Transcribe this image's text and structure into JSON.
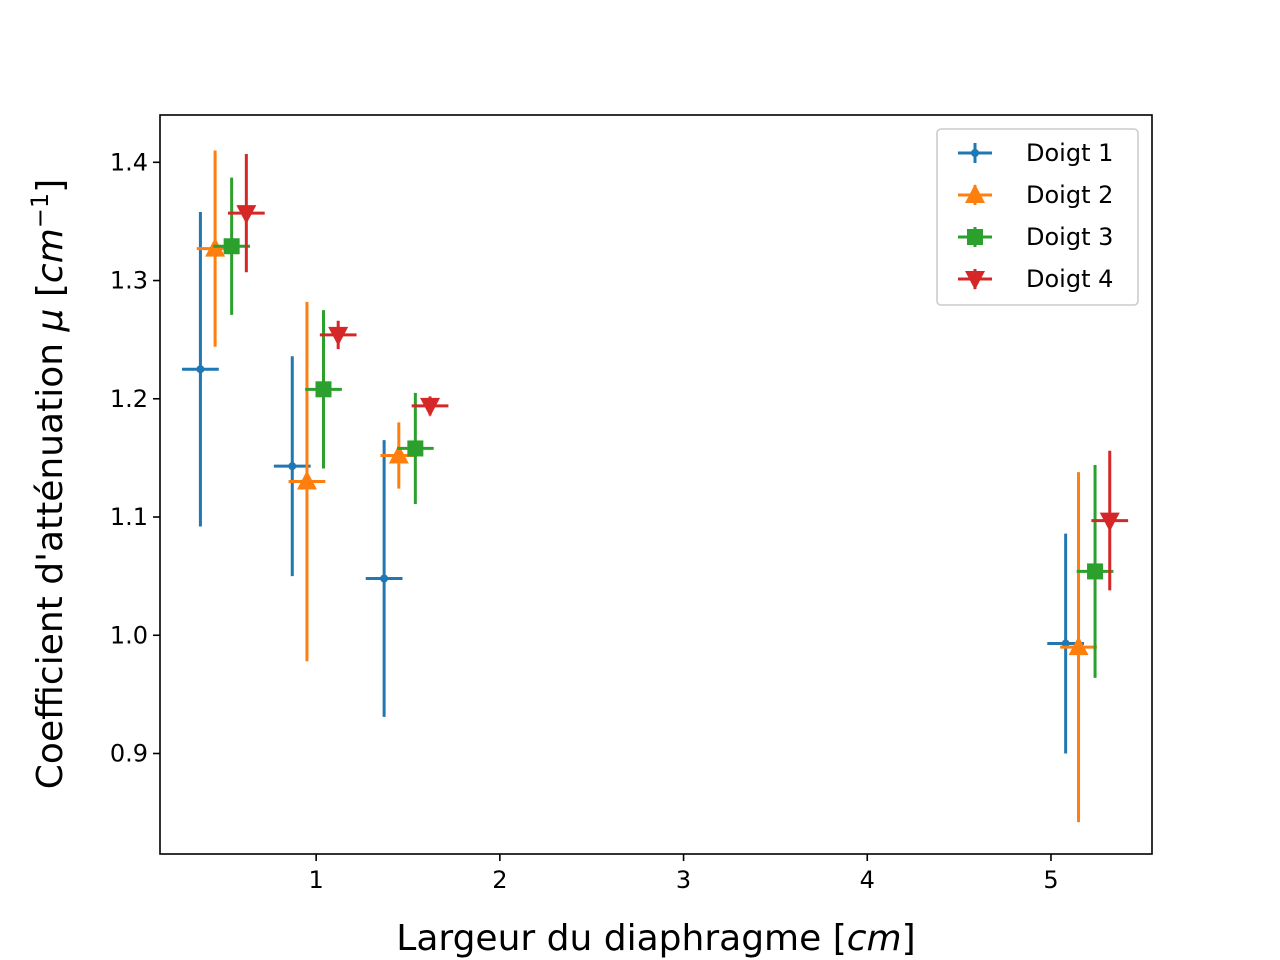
{
  "chart_data": {
    "type": "scatter",
    "xlabel_text": "Largeur du diaphragme [",
    "xlabel_unit": "cm",
    "xlabel_close": "]",
    "ylabel_text": "Coefficient d'atténuation ",
    "ylabel_symbol": "μ",
    "ylabel_open": " [",
    "ylabel_unit": "cm",
    "ylabel_exp": "−1",
    "ylabel_close": "]",
    "xlim": [
      0.15,
      5.55
    ],
    "ylim": [
      0.815,
      1.44
    ],
    "xticks": [
      {
        "value": 1,
        "label": "1"
      },
      {
        "value": 2,
        "label": "2"
      },
      {
        "value": 3,
        "label": "3"
      },
      {
        "value": 4,
        "label": "4"
      },
      {
        "value": 5,
        "label": "5"
      }
    ],
    "yticks": [
      {
        "value": 0.9,
        "label": "0.9"
      },
      {
        "value": 1.0,
        "label": "1.0"
      },
      {
        "value": 1.1,
        "label": "1.1"
      },
      {
        "value": 1.2,
        "label": "1.2"
      },
      {
        "value": 1.3,
        "label": "1.3"
      },
      {
        "value": 1.4,
        "label": "1.4"
      }
    ],
    "grid": false,
    "legend_position": "top-right",
    "series": [
      {
        "name": "Doigt 1",
        "color": "#1f77b4",
        "marker": "point",
        "points": [
          {
            "x": 0.37,
            "y": 1.225,
            "xerr": 0.1,
            "yerr": 0.133
          },
          {
            "x": 0.87,
            "y": 1.143,
            "xerr": 0.1,
            "yerr": 0.093
          },
          {
            "x": 1.37,
            "y": 1.048,
            "xerr": 0.1,
            "yerr": 0.117
          },
          {
            "x": 5.08,
            "y": 0.993,
            "xerr": 0.1,
            "yerr": 0.093
          }
        ]
      },
      {
        "name": "Doigt 2",
        "color": "#ff7f0e",
        "marker": "triangle-up",
        "points": [
          {
            "x": 0.45,
            "y": 1.327,
            "xerr": 0.1,
            "yerr": 0.083
          },
          {
            "x": 0.95,
            "y": 1.13,
            "xerr": 0.1,
            "yerr": 0.152
          },
          {
            "x": 1.45,
            "y": 1.152,
            "xerr": 0.1,
            "yerr": 0.028
          },
          {
            "x": 5.15,
            "y": 0.99,
            "xerr": 0.1,
            "yerr": 0.148
          }
        ]
      },
      {
        "name": "Doigt 3",
        "color": "#2ca02c",
        "marker": "square",
        "points": [
          {
            "x": 0.54,
            "y": 1.329,
            "xerr": 0.1,
            "yerr": 0.058
          },
          {
            "x": 1.04,
            "y": 1.208,
            "xerr": 0.1,
            "yerr": 0.067
          },
          {
            "x": 1.54,
            "y": 1.158,
            "xerr": 0.1,
            "yerr": 0.047
          },
          {
            "x": 5.24,
            "y": 1.054,
            "xerr": 0.1,
            "yerr": 0.09
          }
        ]
      },
      {
        "name": "Doigt 4",
        "color": "#d62728",
        "marker": "triangle-down",
        "points": [
          {
            "x": 0.62,
            "y": 1.357,
            "xerr": 0.1,
            "yerr": 0.05
          },
          {
            "x": 1.12,
            "y": 1.254,
            "xerr": 0.1,
            "yerr": 0.012
          },
          {
            "x": 1.62,
            "y": 1.194,
            "xerr": 0.1,
            "yerr": 0.008
          },
          {
            "x": 5.32,
            "y": 1.097,
            "xerr": 0.1,
            "yerr": 0.059
          }
        ]
      }
    ]
  }
}
